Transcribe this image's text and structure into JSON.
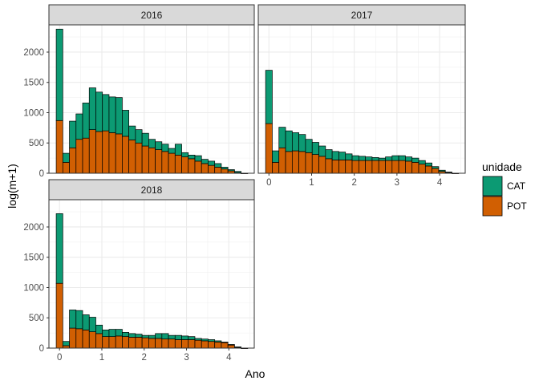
{
  "chart_data": {
    "type": "bar",
    "stacked": true,
    "xlabel": "Ano",
    "ylabel": "log(m+1)",
    "xlim": [
      -0.25,
      4.6
    ],
    "ylim": [
      0,
      2450
    ],
    "x_ticks": [
      0,
      1,
      2,
      3,
      4
    ],
    "y_ticks": [
      0,
      500,
      1000,
      1500,
      2000
    ],
    "bin_width": 0.156,
    "x": [
      0,
      0.156,
      0.312,
      0.468,
      0.624,
      0.78,
      0.936,
      1.092,
      1.248,
      1.404,
      1.56,
      1.716,
      1.872,
      2.028,
      2.184,
      2.34,
      2.496,
      2.652,
      2.808,
      2.964,
      3.12,
      3.276,
      3.432,
      3.588,
      3.744,
      3.9,
      4.056,
      4.212,
      4.368
    ],
    "legend": {
      "title": "unidade",
      "entries": [
        {
          "name": "CAT",
          "color": "#0c9a73"
        },
        {
          "name": "POT",
          "color": "#d15f02"
        }
      ]
    },
    "panels": [
      {
        "title": "2016",
        "series": [
          {
            "name": "POT",
            "values": [
              870,
              180,
              420,
              560,
              580,
              720,
              690,
              700,
              670,
              650,
              610,
              550,
              500,
              450,
              420,
              390,
              360,
              330,
              300,
              270,
              240,
              200,
              160,
              130,
              100,
              70,
              40,
              10,
              0
            ]
          },
          {
            "name": "CAT",
            "values": [
              1510,
              150,
              440,
              420,
              580,
              690,
              650,
              600,
              590,
              600,
              430,
              230,
              220,
              210,
              140,
              130,
              120,
              80,
              180,
              70,
              60,
              90,
              70,
              70,
              60,
              30,
              20,
              20,
              0
            ]
          }
        ]
      },
      {
        "title": "2017",
        "series": [
          {
            "name": "POT",
            "values": [
              820,
              180,
              420,
              360,
              370,
              360,
              340,
              310,
              280,
              240,
              220,
              220,
              220,
              210,
              210,
              210,
              210,
              210,
              210,
              210,
              210,
              200,
              180,
              150,
              120,
              80,
              30,
              10,
              0
            ]
          },
          {
            "name": "CAT",
            "values": [
              880,
              190,
              340,
              340,
              300,
              280,
              220,
              200,
              170,
              150,
              140,
              130,
              100,
              80,
              70,
              60,
              50,
              40,
              60,
              80,
              80,
              70,
              70,
              60,
              50,
              30,
              20,
              10,
              0
            ]
          }
        ]
      },
      {
        "title": "2018",
        "series": [
          {
            "name": "POT",
            "values": [
              1070,
              40,
              330,
              320,
              300,
              270,
              240,
              190,
              190,
              200,
              190,
              180,
              180,
              170,
              160,
              160,
              150,
              150,
              140,
              140,
              140,
              130,
              120,
              110,
              100,
              90,
              50,
              10,
              0
            ]
          },
          {
            "name": "CAT",
            "values": [
              1150,
              70,
              300,
              300,
              250,
              240,
              140,
              110,
              120,
              110,
              70,
              60,
              50,
              40,
              50,
              80,
              90,
              60,
              70,
              60,
              50,
              30,
              30,
              30,
              20,
              10,
              10,
              10,
              0
            ]
          }
        ]
      }
    ]
  }
}
